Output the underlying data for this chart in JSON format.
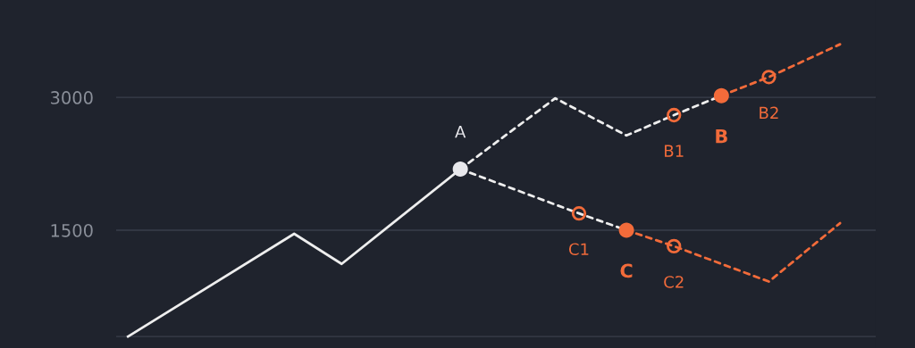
{
  "chart_data": {
    "type": "line",
    "ylim": [
      170,
      4100
    ],
    "categories": [
      null,
      null,
      null,
      null,
      null,
      null,
      null,
      null,
      null,
      null,
      null,
      null,
      null,
      null,
      null,
      null,
      null,
      null,
      null,
      null,
      null,
      null,
      null,
      null,
      null,
      null,
      null,
      null,
      null,
      null,
      null,
      null
    ],
    "yticks": [
      {
        "value": 300,
        "label": null
      },
      1500,
      3000
    ],
    "tick_labels": "y",
    "grid": "y",
    "legend": false,
    "series": [
      {
        "color": "#eeeeee",
        "line_style": "solid",
        "marker": "none",
        "values": [
          300,
          null,
          null,
          null,
          null,
          null,
          null,
          1460,
          null,
          1120,
          null,
          null,
          null,
          null,
          2190,
          null,
          null,
          null,
          null,
          null,
          null,
          null,
          null,
          null,
          null,
          null,
          null,
          null,
          null,
          null,
          null,
          null
        ]
      },
      {
        "color": "#eeeeee",
        "line_style": "dashed",
        "marker": "none",
        "values": [
          null,
          null,
          null,
          null,
          null,
          null,
          null,
          null,
          null,
          null,
          null,
          null,
          null,
          null,
          2190,
          null,
          null,
          null,
          2990,
          null,
          null,
          2570,
          null,
          2800,
          null,
          3020,
          null,
          null,
          null,
          null,
          null,
          null
        ]
      },
      {
        "color": "#f26b3a",
        "line_style": "dashed",
        "marker": "none",
        "values": [
          null,
          null,
          null,
          null,
          null,
          null,
          null,
          null,
          null,
          null,
          null,
          null,
          null,
          null,
          null,
          null,
          null,
          null,
          null,
          null,
          null,
          null,
          null,
          null,
          null,
          3020,
          null,
          3230,
          null,
          null,
          3600,
          null
        ]
      },
      {
        "color": "#eeeeee",
        "line_style": "dashed",
        "marker": "none",
        "values": [
          null,
          null,
          null,
          null,
          null,
          null,
          null,
          null,
          null,
          null,
          null,
          null,
          null,
          null,
          2190,
          null,
          null,
          null,
          null,
          1690,
          null,
          1500,
          null,
          null,
          null,
          null,
          null,
          null,
          null,
          null,
          null,
          null
        ]
      },
      {
        "color": "#f26b3a",
        "line_style": "dashed",
        "marker": "none",
        "values": [
          null,
          null,
          null,
          null,
          null,
          null,
          null,
          null,
          null,
          null,
          null,
          null,
          null,
          null,
          null,
          null,
          null,
          null,
          null,
          null,
          null,
          1500,
          null,
          1320,
          null,
          null,
          null,
          920,
          null,
          null,
          1580,
          null
        ]
      },
      {
        "type": "scatter",
        "color": "#e8e8ec",
        "marker": "circle",
        "values": [
          null,
          null,
          null,
          null,
          null,
          null,
          null,
          null,
          null,
          null,
          null,
          null,
          null,
          null,
          2190,
          null,
          null,
          null,
          null,
          null,
          null,
          null,
          null,
          null,
          null,
          null,
          null,
          null,
          null,
          null,
          null,
          null
        ],
        "value_labels": [
          null,
          null,
          null,
          null,
          null,
          null,
          null,
          null,
          null,
          null,
          null,
          null,
          null,
          null,
          "A",
          null,
          null,
          null,
          null,
          null,
          null,
          null,
          null,
          null,
          null,
          null,
          null,
          null,
          null,
          null,
          null,
          null
        ]
      },
      {
        "type": "scatter",
        "color": "#f26b3a",
        "marker": "circle",
        "values": [
          null,
          null,
          null,
          null,
          null,
          null,
          null,
          null,
          null,
          null,
          null,
          null,
          null,
          null,
          null,
          null,
          null,
          null,
          null,
          null,
          null,
          null,
          null,
          2800,
          null,
          null,
          null,
          3230,
          null,
          null,
          null,
          null
        ],
        "value_labels": [
          null,
          null,
          null,
          null,
          null,
          null,
          null,
          null,
          null,
          null,
          null,
          null,
          null,
          null,
          null,
          null,
          null,
          null,
          null,
          null,
          null,
          null,
          null,
          "B1",
          null,
          null,
          null,
          "B2",
          null,
          null,
          null,
          null
        ]
      },
      {
        "type": "scatter",
        "color": "#f26b3a",
        "marker": "circle",
        "values": [
          null,
          null,
          null,
          null,
          null,
          null,
          null,
          null,
          null,
          null,
          null,
          null,
          null,
          null,
          null,
          null,
          null,
          null,
          null,
          null,
          null,
          null,
          null,
          null,
          null,
          3020,
          null,
          null,
          null,
          null,
          null,
          null
        ],
        "value_labels": [
          null,
          null,
          null,
          null,
          null,
          null,
          null,
          null,
          null,
          null,
          null,
          null,
          null,
          null,
          null,
          null,
          null,
          null,
          null,
          null,
          null,
          null,
          null,
          null,
          null,
          "B",
          null,
          null,
          null,
          null,
          null,
          null
        ]
      },
      {
        "type": "scatter",
        "color": "#f26b3a",
        "marker": "circle",
        "values": [
          null,
          null,
          null,
          null,
          null,
          null,
          null,
          null,
          null,
          null,
          null,
          null,
          null,
          null,
          null,
          null,
          null,
          null,
          null,
          1690,
          null,
          null,
          null,
          1320,
          null,
          null,
          null,
          null,
          null,
          null,
          null,
          null
        ],
        "value_labels": [
          null,
          null,
          null,
          null,
          null,
          null,
          null,
          null,
          null,
          null,
          null,
          null,
          null,
          null,
          null,
          null,
          null,
          null,
          null,
          "C1",
          null,
          null,
          null,
          "C2",
          null,
          null,
          null,
          null,
          null,
          null,
          null,
          null
        ]
      },
      {
        "type": "scatter",
        "color": "#f26b3a",
        "marker": "circle",
        "values": [
          null,
          null,
          null,
          null,
          null,
          null,
          null,
          null,
          null,
          null,
          null,
          null,
          null,
          null,
          null,
          null,
          null,
          null,
          null,
          null,
          null,
          1500,
          null,
          null,
          null,
          null,
          null,
          null,
          null,
          null,
          null,
          null
        ],
        "value_labels": [
          null,
          null,
          null,
          null,
          null,
          null,
          null,
          null,
          null,
          null,
          null,
          null,
          null,
          null,
          null,
          null,
          null,
          null,
          null,
          null,
          null,
          "C",
          null,
          null,
          null,
          null,
          null,
          null,
          null,
          null,
          null,
          null
        ]
      }
    ]
  }
}
